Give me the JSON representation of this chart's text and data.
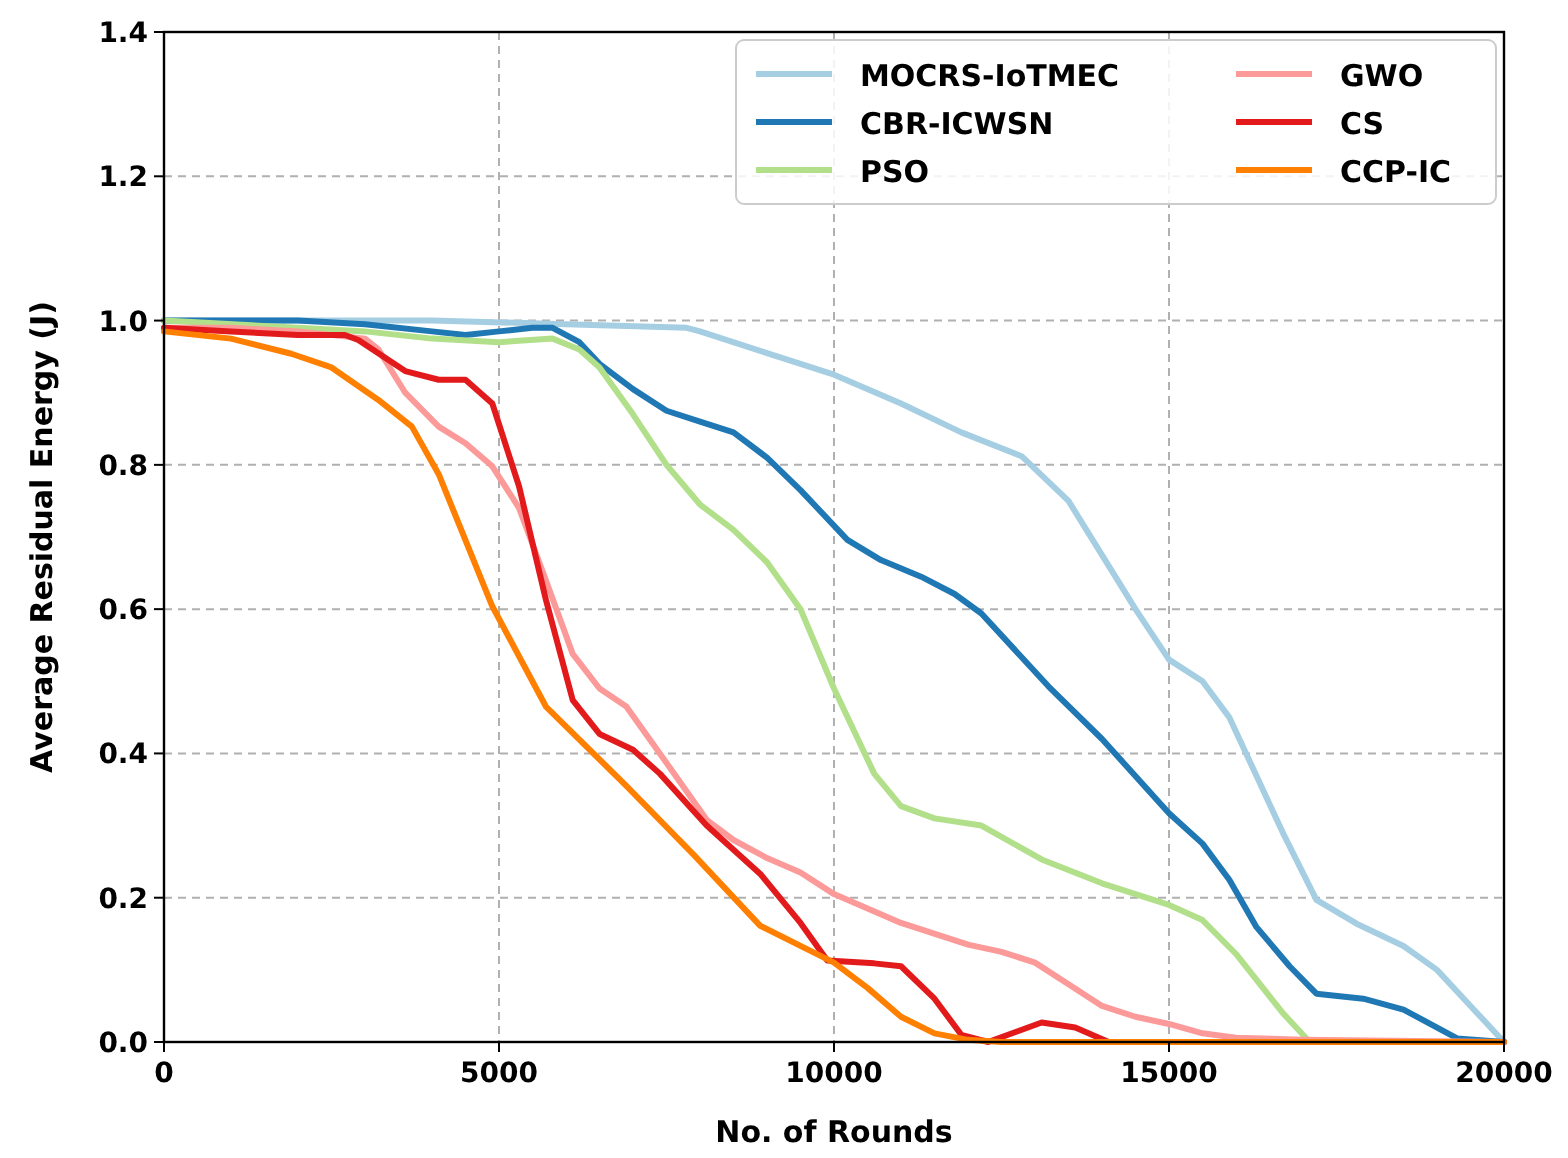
{
  "chart_data": {
    "type": "line",
    "xlabel": "No. of Rounds",
    "ylabel": "Average Residual Energy (J)",
    "xlim": [
      0,
      20000
    ],
    "xticks": [
      0,
      5000,
      10000,
      15000,
      20000
    ],
    "ylim": [
      0,
      1.4
    ],
    "yticks": [
      {
        "value": 0,
        "label": "0.0"
      },
      0.2,
      0.4,
      0.6,
      0.8,
      {
        "value": 1,
        "label": "1.0"
      },
      1.2,
      1.4
    ],
    "grid": true,
    "legend": "top right",
    "line_style": "solid",
    "marker": "none",
    "series": [
      {
        "name": "MOCRS-IoTMEC",
        "color": "#a6cee3",
        "x": [
          0,
          2000,
          4000,
          6000,
          7800,
          8000,
          9000,
          9500,
          10000,
          11000,
          11900,
          12800,
          13500,
          14500,
          15000,
          15500,
          15900,
          16300,
          16700,
          17200,
          17800,
          18500,
          19000,
          19500,
          20000
        ],
        "values": [
          1.0,
          1.0,
          1.0,
          0.995,
          0.99,
          0.985,
          0.955,
          0.94,
          0.925,
          0.885,
          0.845,
          0.812,
          0.75,
          0.6,
          0.53,
          0.5,
          0.45,
          0.37,
          0.29,
          0.197,
          0.164,
          0.133,
          0.1,
          0.05,
          0.0
        ]
      },
      {
        "name": "CBR-ICWSN",
        "color": "#1f78b4",
        "x": [
          0,
          2000,
          3000,
          4000,
          4500,
          5000,
          5500,
          5800,
          6200,
          6500,
          7000,
          7500,
          8000,
          8500,
          9000,
          9500,
          10200,
          10700,
          11300,
          11800,
          12200,
          13200,
          14000,
          15000,
          15500,
          15900,
          16300,
          16800,
          17200,
          17900,
          18500,
          19300,
          20000
        ],
        "values": [
          1.0,
          1.0,
          0.995,
          0.985,
          0.98,
          0.985,
          0.99,
          0.99,
          0.97,
          0.94,
          0.905,
          0.875,
          0.86,
          0.845,
          0.81,
          0.765,
          0.696,
          0.668,
          0.645,
          0.621,
          0.594,
          0.493,
          0.42,
          0.317,
          0.275,
          0.225,
          0.16,
          0.105,
          0.067,
          0.06,
          0.045,
          0.005,
          0.0
        ]
      },
      {
        "name": "PSO",
        "color": "#b2df8a",
        "x": [
          0,
          2000,
          3000,
          4000,
          5000,
          5800,
          6200,
          6500,
          7000,
          7500,
          8000,
          8500,
          9000,
          9500,
          10000,
          10600,
          11000,
          11500,
          12200,
          13100,
          14000,
          15000,
          15500,
          16000,
          16700,
          17100,
          20000
        ],
        "values": [
          1.0,
          0.99,
          0.985,
          0.975,
          0.97,
          0.975,
          0.96,
          0.935,
          0.87,
          0.8,
          0.745,
          0.71,
          0.665,
          0.6,
          0.49,
          0.372,
          0.327,
          0.31,
          0.3,
          0.253,
          0.22,
          0.19,
          0.169,
          0.122,
          0.04,
          0.0,
          0.0
        ]
      },
      {
        "name": "GWO",
        "color": "#fb9a99",
        "x": [
          0,
          1000,
          2000,
          3000,
          3200,
          3600,
          4100,
          4500,
          4900,
          5300,
          5700,
          6100,
          6500,
          6900,
          7400,
          8100,
          8500,
          9000,
          9500,
          10000,
          11000,
          12000,
          12500,
          13000,
          13500,
          14000,
          14500,
          15000,
          15500,
          16000,
          17000,
          20000
        ],
        "values": [
          0.99,
          0.99,
          0.985,
          0.975,
          0.96,
          0.9,
          0.853,
          0.83,
          0.798,
          0.74,
          0.64,
          0.538,
          0.49,
          0.465,
          0.4,
          0.308,
          0.28,
          0.255,
          0.235,
          0.205,
          0.165,
          0.135,
          0.125,
          0.11,
          0.08,
          0.05,
          0.035,
          0.025,
          0.012,
          0.006,
          0.003,
          0.0
        ]
      },
      {
        "name": "CS",
        "color": "#e31a1c",
        "x": [
          0,
          1000,
          2000,
          2700,
          2900,
          3600,
          4100,
          4500,
          4900,
          5300,
          5700,
          6100,
          6500,
          7000,
          7400,
          8100,
          8900,
          9500,
          9900,
          10600,
          11000,
          11500,
          11900,
          12300,
          13100,
          13600,
          14100,
          20000
        ],
        "values": [
          0.99,
          0.985,
          0.98,
          0.98,
          0.973,
          0.93,
          0.918,
          0.918,
          0.885,
          0.77,
          0.613,
          0.474,
          0.427,
          0.405,
          0.372,
          0.3,
          0.233,
          0.165,
          0.113,
          0.109,
          0.105,
          0.06,
          0.01,
          0.0,
          0.027,
          0.02,
          0.0,
          0.0
        ]
      },
      {
        "name": "CCP-IC",
        "color": "#ff7f00",
        "x": [
          0,
          1000,
          1900,
          2500,
          3200,
          3700,
          4100,
          4900,
          5700,
          6900,
          7900,
          8900,
          10000,
          10500,
          11000,
          11500,
          12000,
          12500,
          20000
        ],
        "values": [
          0.985,
          0.975,
          0.954,
          0.935,
          0.89,
          0.853,
          0.787,
          0.604,
          0.465,
          0.355,
          0.26,
          0.161,
          0.11,
          0.075,
          0.035,
          0.012,
          0.003,
          0.0,
          0.0
        ]
      }
    ]
  }
}
